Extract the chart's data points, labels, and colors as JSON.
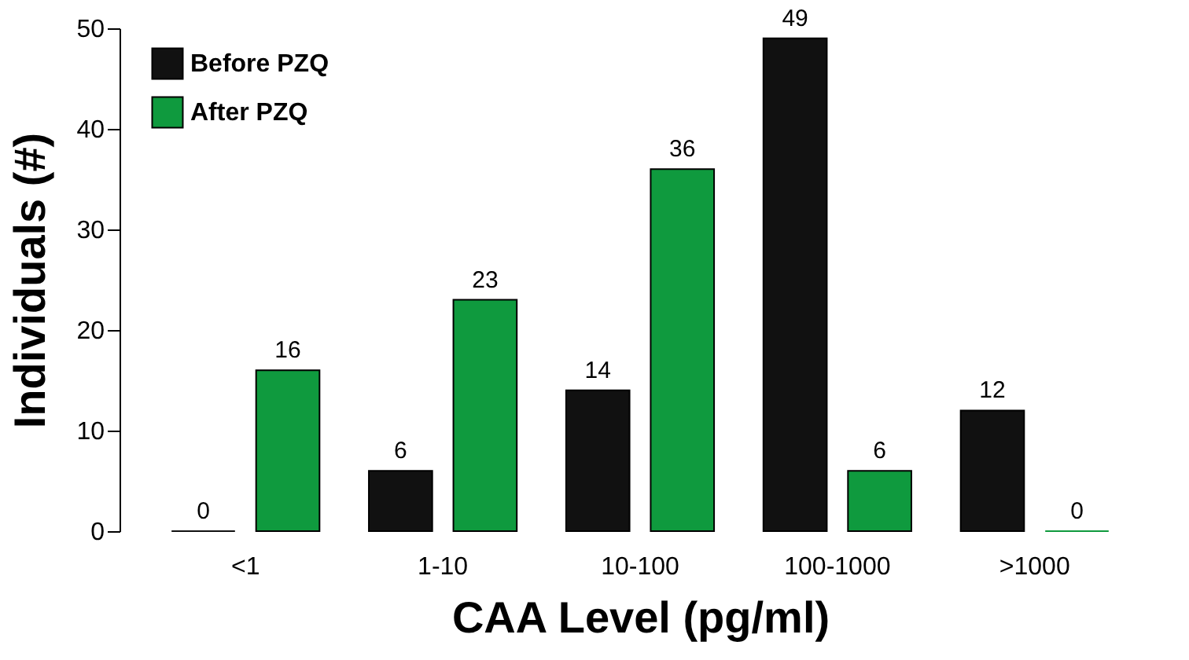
{
  "chart_data": {
    "type": "bar",
    "xlabel": "CAA Level (pg/ml)",
    "ylabel": "Individuals (#)",
    "categories": [
      "<1",
      "1-10",
      "10-100",
      "100-1000",
      ">1000"
    ],
    "series": [
      {
        "name": "Before PZQ",
        "color": "#111111",
        "values": [
          0,
          6,
          14,
          49,
          12
        ]
      },
      {
        "name": "After PZQ",
        "color": "#0f9a3e",
        "values": [
          16,
          23,
          36,
          6,
          0
        ]
      }
    ],
    "ylim": [
      0,
      50
    ],
    "yticks": [
      0,
      10,
      20,
      30,
      40,
      50
    ],
    "grid": false,
    "legend": "top left",
    "data_labels": true
  }
}
